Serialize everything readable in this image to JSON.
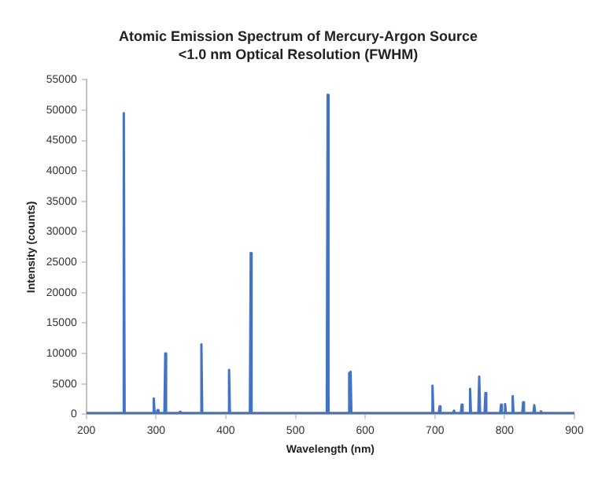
{
  "chart_data": {
    "type": "line",
    "title": "Atomic Emission Spectrum of Mercury-Argon Source",
    "subtitle": "<1.0 nm Optical Resolution (FWHM)",
    "xlabel": "Wavelength (nm)",
    "ylabel": "Intensity (counts)",
    "x": [
      200,
      252.5,
      253.7,
      254.9,
      295.5,
      296.7,
      297.9,
      301,
      302.2,
      303.4,
      312,
      313.2,
      314.4,
      332.9,
      334.1,
      335.3,
      363.8,
      365,
      366.2,
      403.5,
      404.7,
      405.9,
      434.6,
      435.8,
      437,
      544.9,
      546.1,
      547.3,
      575.8,
      577,
      578,
      579,
      580.2,
      695.3,
      696.5,
      697.7,
      705.5,
      706.7,
      707.9,
      726.1,
      727.3,
      728.5,
      737.2,
      738.4,
      739.6,
      749.2,
      750.4,
      751.6,
      762.3,
      763.5,
      764.7,
      771.2,
      772.4,
      773.6,
      793.6,
      794.8,
      796,
      799.4,
      800.6,
      801.8,
      810.3,
      811.5,
      812.7,
      825.3,
      826.5,
      827.7,
      841.3,
      842.5,
      843.7,
      850.9,
      852.1,
      853.3,
      900
    ],
    "series": [
      {
        "color": "#4472c4",
        "values": [
          200,
          200,
          49500,
          200,
          200,
          2600,
          200,
          200,
          700,
          200,
          200,
          10000,
          200,
          200,
          400,
          200,
          200,
          11500,
          200,
          200,
          7300,
          200,
          200,
          26500,
          200,
          200,
          52500,
          200,
          200,
          6800,
          3000,
          7000,
          200,
          200,
          4700,
          200,
          200,
          1300,
          200,
          200,
          600,
          200,
          200,
          1600,
          200,
          200,
          4200,
          200,
          200,
          6200,
          200,
          200,
          3500,
          200,
          200,
          1600,
          200,
          200,
          1700,
          200,
          200,
          3000,
          200,
          200,
          2000,
          200,
          200,
          1500,
          200,
          200,
          500,
          200,
          200
        ]
      }
    ],
    "xlim": [
      200,
      900
    ],
    "xticks": [
      200,
      300,
      400,
      500,
      600,
      700,
      800,
      900
    ],
    "ylim": [
      0,
      55000
    ],
    "yticks": [
      0,
      5000,
      10000,
      15000,
      20000,
      25000,
      30000,
      35000,
      40000,
      45000,
      50000,
      55000
    ],
    "grid": false,
    "legend": false,
    "marker": "none",
    "line_style": "solid"
  }
}
